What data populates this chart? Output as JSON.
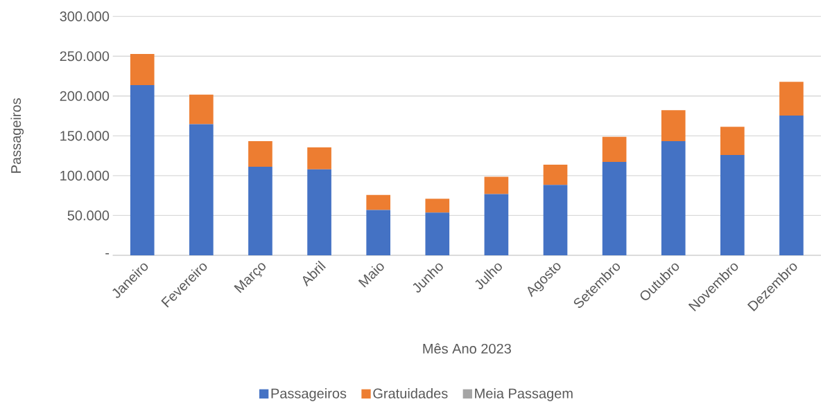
{
  "chart_data": {
    "type": "bar",
    "stacked": true,
    "xlabel": "Mês Ano 2023",
    "ylabel": "Passageiros",
    "categories": [
      "Janeiro",
      "Fevereiro",
      "Março",
      "Abril",
      "Maio",
      "Junho",
      "Julho",
      "Agosto",
      "Setembro",
      "Outubro",
      "Novembro",
      "Dezembro"
    ],
    "series": [
      {
        "name": "Passageiros",
        "color": "#4472c4",
        "values": [
          213700,
          164600,
          111200,
          108000,
          56900,
          53700,
          76900,
          88300,
          117300,
          143300,
          126000,
          175400
        ]
      },
      {
        "name": "Gratuidades",
        "color": "#ed7d31",
        "values": [
          39200,
          37200,
          32200,
          27600,
          18900,
          17400,
          21600,
          25400,
          31500,
          38900,
          35400,
          42400
        ]
      },
      {
        "name": "Meia Passagem",
        "color": "#a5a5a5",
        "values": [
          0,
          0,
          0,
          0,
          0,
          0,
          0,
          0,
          0,
          0,
          0,
          0
        ]
      }
    ],
    "ylim": [
      0,
      300000
    ],
    "yticks": [
      {
        "value": 0,
        "label": "-"
      },
      {
        "value": 50000,
        "label": "50.000"
      },
      {
        "value": 100000,
        "label": "100.000"
      },
      {
        "value": 150000,
        "label": "150.000"
      },
      {
        "value": 200000,
        "label": "200.000"
      },
      {
        "value": 250000,
        "label": "250.000"
      },
      {
        "value": 300000,
        "label": "300.000"
      }
    ],
    "grid": "y",
    "legend": "bottom"
  }
}
